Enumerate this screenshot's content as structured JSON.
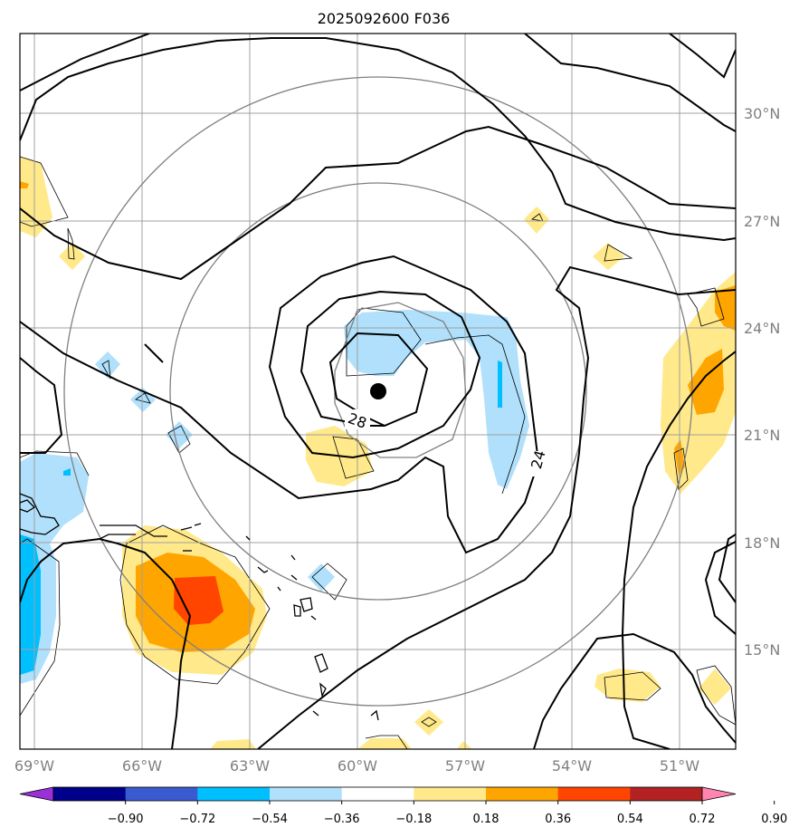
{
  "title": "2025092600 F036",
  "storm_center": {
    "lon": -59.2,
    "lat": 22.2
  },
  "longitude_labels": [
    "69°W",
    "66°W",
    "63°W",
    "60°W",
    "57°W",
    "54°W",
    "51°W"
  ],
  "latitude_labels": [
    "30°N",
    "27°N",
    "24°N",
    "21°N",
    "18°N",
    "15°N"
  ],
  "contour_labels": [
    "28",
    "24"
  ],
  "colorbar": {
    "ticks": [
      "−0.90",
      "−0.72",
      "−0.54",
      "−0.36",
      "−0.18",
      "0.18",
      "0.36",
      "0.54",
      "0.72",
      "0.90"
    ],
    "colors": [
      "#9b30d9",
      "#00008b",
      "#3a5bd0",
      "#00bfff",
      "#b0e0fb",
      "#ffffff",
      "#ffe98a",
      "#ffa500",
      "#ff4500",
      "#b22222",
      "#ff85b0"
    ]
  },
  "colors": {
    "coastline": "#000000",
    "grid": "#a0a0a0",
    "range_rings": "#808080",
    "contours": "#000000"
  }
}
